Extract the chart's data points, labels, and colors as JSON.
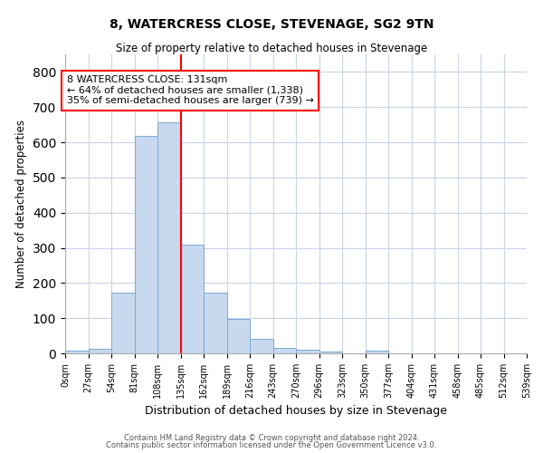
{
  "title": "8, WATERCRESS CLOSE, STEVENAGE, SG2 9TN",
  "subtitle": "Size of property relative to detached houses in Stevenage",
  "xlabel": "Distribution of detached houses by size in Stevenage",
  "ylabel": "Number of detached properties",
  "bin_edges": [
    0,
    27,
    54,
    81,
    108,
    135,
    162,
    189,
    216,
    243,
    270,
    297,
    324,
    351,
    378,
    405,
    432,
    459,
    486,
    513,
    540
  ],
  "bin_labels": [
    "0sqm",
    "27sqm",
    "54sqm",
    "81sqm",
    "108sqm",
    "135sqm",
    "162sqm",
    "189sqm",
    "216sqm",
    "243sqm",
    "270sqm",
    "296sqm",
    "323sqm",
    "350sqm",
    "377sqm",
    "404sqm",
    "431sqm",
    "458sqm",
    "485sqm",
    "512sqm",
    "539sqm"
  ],
  "values": [
    8,
    13,
    172,
    617,
    658,
    308,
    172,
    98,
    42,
    15,
    10,
    5,
    0,
    8,
    0,
    0,
    0,
    0,
    0,
    0
  ],
  "bar_color": "#C8D8EE",
  "bar_edge_color": "#7BAAD4",
  "property_line_x": 135,
  "property_line_color": "red",
  "annotation_line1": "8 WATERCRESS CLOSE: 131sqm",
  "annotation_line2": "← 64% of detached houses are smaller (1,338)",
  "annotation_line3": "35% of semi-detached houses are larger (739) →",
  "annotation_box_color": "white",
  "annotation_box_edge_color": "red",
  "ylim": [
    0,
    850
  ],
  "yticks": [
    0,
    100,
    200,
    300,
    400,
    500,
    600,
    700,
    800
  ],
  "footer_line1": "Contains HM Land Registry data © Crown copyright and database right 2024.",
  "footer_line2": "Contains public sector information licensed under the Open Government Licence v3.0.",
  "background_color": "#ffffff",
  "plot_background_color": "#ffffff",
  "grid_color": "#C8D4E8"
}
